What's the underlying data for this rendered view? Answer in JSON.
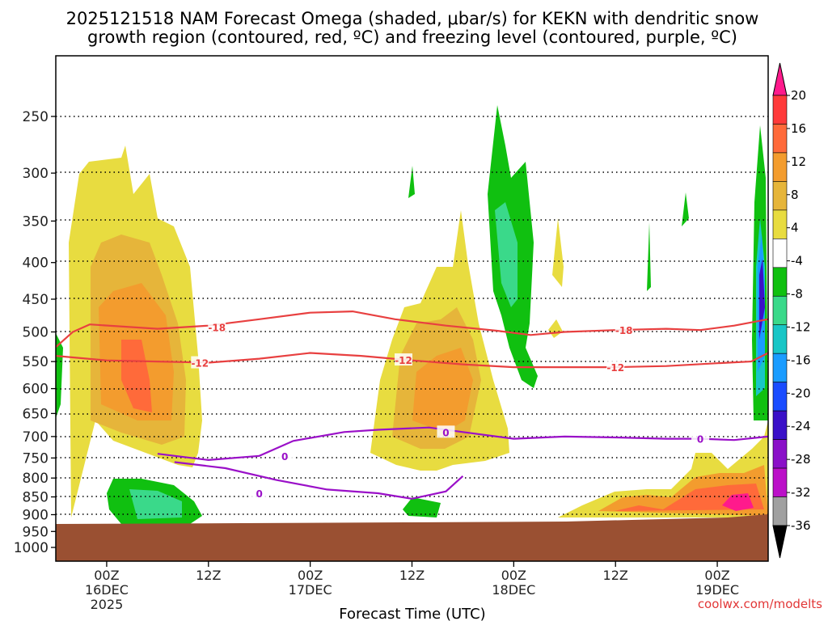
{
  "chart_data": {
    "type": "contour",
    "title_line1": "2025121518 NAM Forecast Omega (shaded, μbar/s) for KEKN with dendritic snow",
    "title_line2": "growth region (contoured, red, ºC) and freezing level (contoured, purple, ºC)",
    "xlabel": "Forecast Time (UTC)",
    "ylabel": "Pressure (mb)",
    "credit": "coolwx.com/modelts",
    "x_ticks": [
      {
        "hour": 6,
        "label": "00Z",
        "sub": "16DEC",
        "sub2": "2025"
      },
      {
        "hour": 18,
        "label": "12Z",
        "sub": "",
        "sub2": ""
      },
      {
        "hour": 30,
        "label": "00Z",
        "sub": "17DEC",
        "sub2": ""
      },
      {
        "hour": 42,
        "label": "12Z",
        "sub": "",
        "sub2": ""
      },
      {
        "hour": 54,
        "label": "00Z",
        "sub": "18DEC",
        "sub2": ""
      },
      {
        "hour": 66,
        "label": "12Z",
        "sub": "",
        "sub2": ""
      },
      {
        "hour": 78,
        "label": "00Z",
        "sub": "19DEC",
        "sub2": ""
      }
    ],
    "x_range_hours": [
      0,
      84
    ],
    "y_ticks": [
      "250",
      "300",
      "350",
      "400",
      "450",
      "500",
      "550",
      "600",
      "650",
      "700",
      "750",
      "800",
      "850",
      "900",
      "950",
      "1000"
    ],
    "y_range_mb": [
      200,
      1030
    ],
    "ground_level_mb": 925,
    "colorbar": {
      "labels": [
        "20",
        "16",
        "12",
        "8",
        "4",
        "-4",
        "-8",
        "-12",
        "-16",
        "-20",
        "-24",
        "-28",
        "-32",
        "-36"
      ],
      "colors": [
        "#ff1a8c",
        "#ff3a3a",
        "#ff6a3a",
        "#f39c2e",
        "#e6b53a",
        "#e8dc40",
        "#ffffff",
        "#10c010",
        "#3ad98a",
        "#18c6c6",
        "#1a9cff",
        "#1a4cff",
        "#3a10c8",
        "#8a10c8",
        "#bb10c8",
        "#a0a0a0",
        "#000000"
      ]
    },
    "isotherm_labels": {
      "dgz_top": "-18",
      "dgz_bottom": "-12",
      "freezing": "0"
    },
    "dgz_top_minus18": [
      [
        0,
        525
      ],
      [
        2,
        500
      ],
      [
        4,
        488
      ],
      [
        12,
        495
      ],
      [
        18,
        490
      ],
      [
        24,
        480
      ],
      [
        30,
        470
      ],
      [
        35,
        468
      ],
      [
        40,
        480
      ],
      [
        46,
        490
      ],
      [
        52,
        498
      ],
      [
        56,
        505
      ],
      [
        60,
        500
      ],
      [
        66,
        497
      ],
      [
        72,
        495
      ],
      [
        76,
        497
      ],
      [
        80,
        490
      ],
      [
        84,
        480
      ]
    ],
    "dgz_bottom_minus12": [
      [
        0,
        540
      ],
      [
        6,
        548
      ],
      [
        12,
        550
      ],
      [
        18,
        552
      ],
      [
        24,
        545
      ],
      [
        30,
        535
      ],
      [
        36,
        540
      ],
      [
        42,
        548
      ],
      [
        48,
        555
      ],
      [
        54,
        560
      ],
      [
        60,
        560
      ],
      [
        66,
        560
      ],
      [
        72,
        558
      ],
      [
        78,
        553
      ],
      [
        82,
        550
      ],
      [
        84,
        535
      ]
    ],
    "freezing_level_0C": [
      [
        12,
        740
      ],
      [
        18,
        755
      ],
      [
        24,
        745
      ],
      [
        28,
        710
      ],
      [
        34,
        690
      ],
      [
        38,
        685
      ],
      [
        44,
        680
      ],
      [
        48,
        690
      ],
      [
        54,
        705
      ],
      [
        60,
        700
      ],
      [
        66,
        702
      ],
      [
        72,
        705
      ],
      [
        76,
        705
      ],
      [
        80,
        708
      ],
      [
        84,
        700
      ]
    ],
    "freezing_level_0C_lower": [
      [
        14,
        760
      ],
      [
        20,
        775
      ],
      [
        26,
        805
      ],
      [
        32,
        830
      ],
      [
        38,
        840
      ],
      [
        42,
        855
      ],
      [
        46,
        835
      ],
      [
        48,
        795
      ]
    ]
  }
}
